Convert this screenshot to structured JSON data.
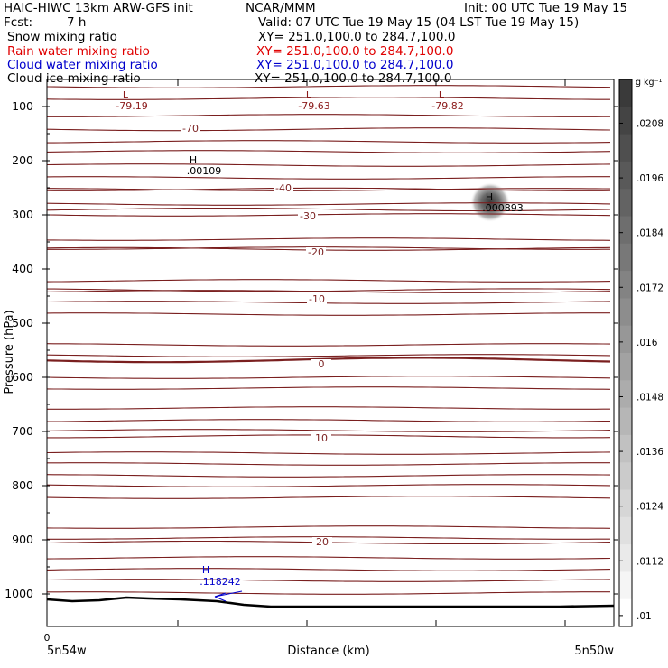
{
  "header": {
    "model": "HAIC-HIWC 13km ARW-GFS init",
    "org": "NCAR/MMM",
    "init": "Init: 00 UTC Tue 19 May 15",
    "fcst_label": "Fcst:",
    "fcst_value": "7 h",
    "valid": "Valid: 07 UTC Tue 19 May 15 (04 LST Tue 19 May 15)"
  },
  "legend": [
    {
      "name": "Snow mixing ratio",
      "xy": "XY= 251.0,100.0 to 284.7,100.0",
      "color": "#000000"
    },
    {
      "name": "Rain water mixing ratio",
      "xy": "XY= 251.0,100.0 to 284.7,100.0",
      "color": "#e00000"
    },
    {
      "name": "Cloud water mixing ratio",
      "xy": "XY= 251.0,100.0 to 284.7,100.0",
      "color": "#0000cc"
    },
    {
      "name": "Cloud ice mixing ratio",
      "xy": "XY= 251.0,100.0 to 284.7,100.0",
      "color": "#000000"
    }
  ],
  "chart_data": {
    "type": "line",
    "title": "",
    "xlabel": "Distance (km)",
    "ylabel": "Pressure (hPa)",
    "x_tick_labels": [
      "0"
    ],
    "x_end_labels": [
      "5n54w",
      "5n50w"
    ],
    "y_tick_labels": [
      "100",
      "200",
      "300",
      "400",
      "500",
      "600",
      "700",
      "800",
      "900",
      "1000"
    ],
    "ylim": [
      1050,
      50
    ],
    "temperature_contours": [
      {
        "label": "-70",
        "p": 142
      },
      {
        "label": "-40",
        "p": 253
      },
      {
        "label": "-30",
        "p": 290
      },
      {
        "label": "-20",
        "p": 363
      },
      {
        "label": "-10",
        "p": 439
      },
      {
        "label": "0",
        "p": 568
      },
      {
        "label": "10",
        "p": 709
      },
      {
        "label": "20",
        "p": 905
      }
    ],
    "extrema": [
      {
        "type": "L",
        "value": "-79.19",
        "color": "#8b1a1a"
      },
      {
        "type": "L",
        "value": "-79.63",
        "color": "#8b1a1a"
      },
      {
        "type": "L",
        "value": "-79.82",
        "color": "#8b1a1a"
      },
      {
        "type": "H",
        "value": ".00109",
        "color": "#000000"
      },
      {
        "type": "H",
        "value": ".000893",
        "color": "#000000"
      },
      {
        "type": "H",
        "value": ".118242",
        "color": "#0000cc"
      }
    ],
    "colorbar": {
      "unit": "g kg⁻¹",
      "ticks": [
        ".0208",
        ".0196",
        ".0184",
        ".0172",
        ".016",
        ".0148",
        ".0136",
        ".0124",
        ".0112",
        ".01"
      ],
      "min_color": "#ffffff",
      "max_color": "#3a3a3a"
    },
    "colors": {
      "temperature": "#7a1f1f",
      "terrain": "#000000"
    }
  }
}
